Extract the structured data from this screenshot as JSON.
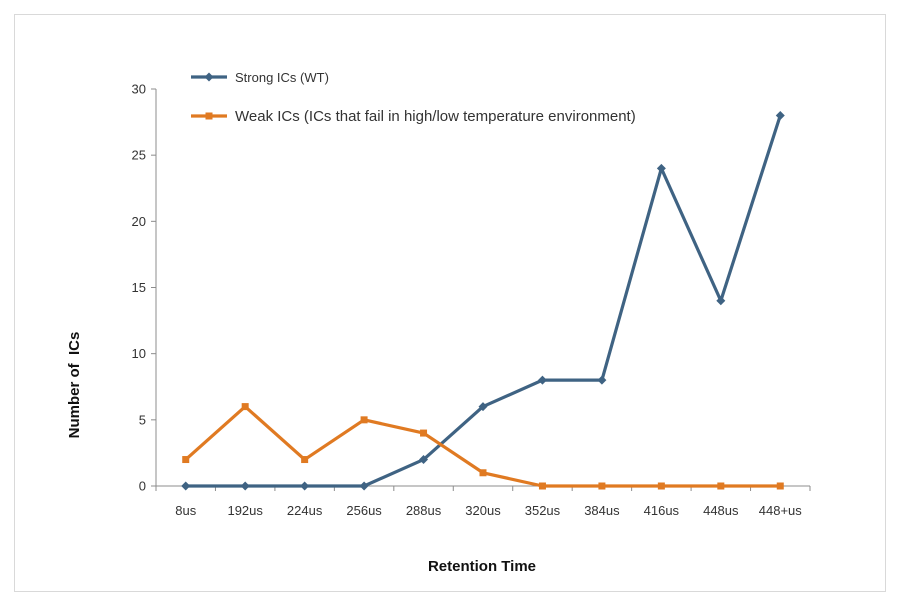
{
  "chart_data": {
    "type": "line",
    "title": "",
    "xlabel": "Retention Time",
    "ylabel": "Number of  ICs",
    "categories": [
      "8us",
      "192us",
      "224us",
      "256us",
      "288us",
      "320us",
      "352us",
      "384us",
      "416us",
      "448us",
      "448+us"
    ],
    "ylim": [
      0,
      30
    ],
    "yticks": [
      "0",
      "5",
      "10",
      "15",
      "20",
      "25",
      "30"
    ],
    "grid": false,
    "legend_position": "top-left",
    "series": [
      {
        "name": "Strong ICs (WT)",
        "color": "#3f6383",
        "marker": "diamond",
        "values": [
          0,
          0,
          0,
          0,
          2,
          6,
          8,
          8,
          24,
          14,
          28
        ]
      },
      {
        "name": "Weak ICs (ICs that fail in high/low temperature environment)",
        "color": "#e07a22",
        "marker": "square",
        "values": [
          2,
          6,
          2,
          5,
          4,
          1,
          0,
          0,
          0,
          0,
          0
        ]
      }
    ]
  }
}
